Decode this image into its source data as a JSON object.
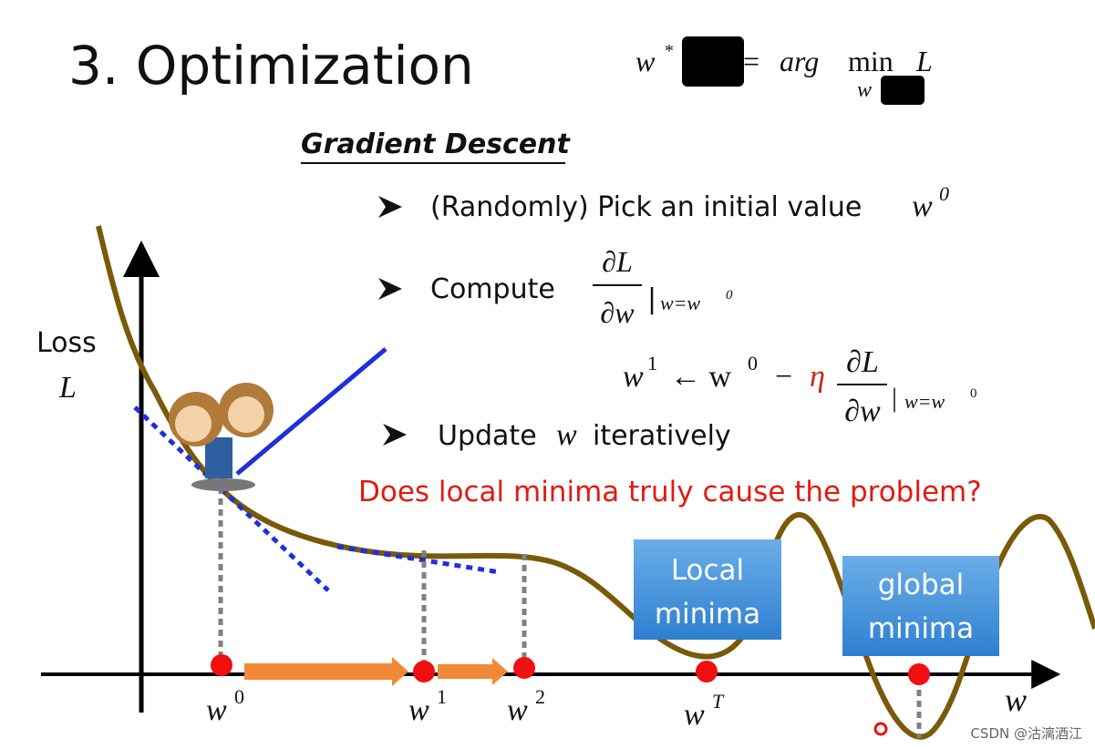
{
  "title": "3. Optimization",
  "formula": {
    "w": "w",
    "star": "*",
    "eq": "=",
    "arg": "arg",
    "min": "min",
    "L": "L",
    "sub": "w"
  },
  "section": "Gradient Descent",
  "bullets": [
    {
      "text": "(Randomly) Pick an initial value",
      "var": "w",
      "sup": "0"
    },
    {
      "text": "Compute",
      "num": "∂L",
      "den": "∂w",
      "bar": "|",
      "cond": "w=w",
      "cond_sup": "0"
    },
    {
      "text": "Update",
      "var": "w",
      "rest": "iteratively"
    }
  ],
  "update": {
    "w": "w",
    "sup1": "1",
    "arrow": "← w",
    "sup0": "0",
    "minus": "−",
    "eta": "η",
    "num": "∂L",
    "den": "∂w",
    "bar": "|",
    "cond": "w=w",
    "cond_sup": "0"
  },
  "question": "Does local minima truly cause the problem?",
  "axis": {
    "y_label_1": "Loss",
    "y_label_2": "L",
    "x_label": "w"
  },
  "points": [
    {
      "base": "w",
      "sup": "0"
    },
    {
      "base": "w",
      "sup": "1"
    },
    {
      "base": "w",
      "sup": "2"
    },
    {
      "base": "w",
      "sup": "T"
    }
  ],
  "boxes": [
    {
      "line1": "Local",
      "line2": "minima"
    },
    {
      "line1": "global",
      "line2": "minima"
    }
  ],
  "watermark": "CSDN @沽漓酒江"
}
